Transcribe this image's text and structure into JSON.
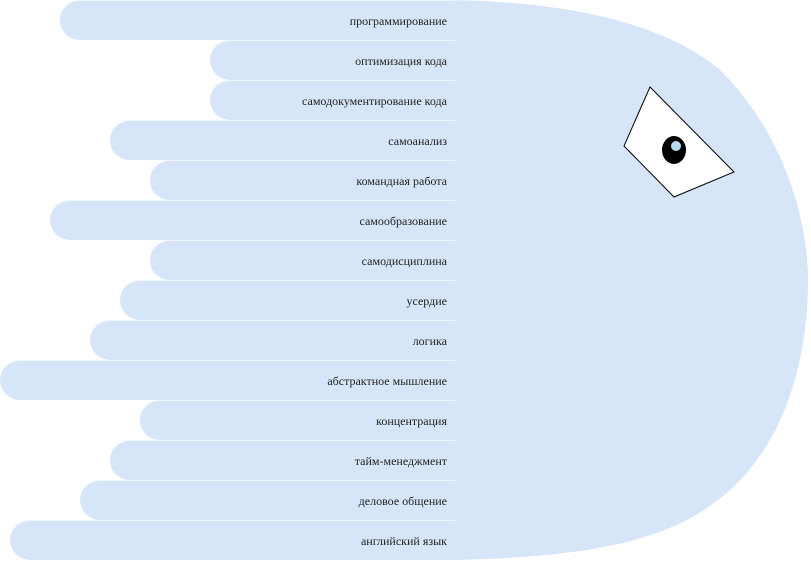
{
  "colors": {
    "body_fill": "#d6e5f8",
    "bar_fill": "#d6e5f8",
    "eye_fill": "#ffffff",
    "eye_stroke": "#000000",
    "pupil": "#000000",
    "highlight": "#b9dcf2"
  },
  "skills": [
    {
      "label": "программирование"
    },
    {
      "label": "оптимизация кода"
    },
    {
      "label": "самодокументирование кода"
    },
    {
      "label": "самоанализ"
    },
    {
      "label": "командная работа"
    },
    {
      "label": "самообразование"
    },
    {
      "label": "самодисциплина"
    },
    {
      "label": "усердие"
    },
    {
      "label": "логика"
    },
    {
      "label": "абстрактное мышление"
    },
    {
      "label": "концентрация"
    },
    {
      "label": "тайм-менеджмент"
    },
    {
      "label": "деловое общение"
    },
    {
      "label": "английский язык"
    }
  ]
}
